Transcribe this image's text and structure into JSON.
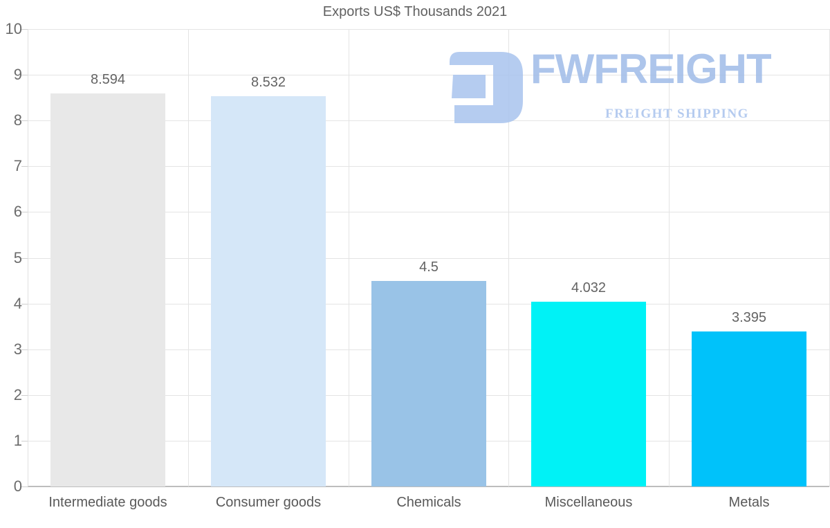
{
  "title": "Exports US$ Thousands 2021",
  "watermark": {
    "brand": "FWFREIGHT",
    "tagline": "FREIGHT SHIPPING",
    "logo_color": "#a9c4ee"
  },
  "chart_data": {
    "type": "bar",
    "title": "Exports US$ Thousands 2021",
    "categories": [
      "Intermediate goods",
      "Consumer goods",
      "Chemicals",
      "Miscellaneous",
      "Metals"
    ],
    "values": [
      8.594,
      8.532,
      4.5,
      4.032,
      3.395
    ],
    "value_labels": [
      "8.594",
      "8.532",
      "4.5",
      "4.032",
      "3.395"
    ],
    "bar_colors": [
      "#e8e8e8",
      "#d5e7f8",
      "#99c3e7",
      "#00f2f6",
      "#00c2fa"
    ],
    "xlabel": "",
    "ylabel": "",
    "ylim": [
      0,
      10
    ],
    "yticks": [
      0,
      1,
      2,
      3,
      4,
      5,
      6,
      7,
      8,
      9,
      10
    ],
    "grid": true,
    "legend": false,
    "colors": {
      "gridline": "#e4e4e4",
      "axis_line": "#bdbdbd",
      "tick_label": "#6b6b6b",
      "value_label": "#636363",
      "category_label": "#595959",
      "title_text": "#616161",
      "background": "#ffffff"
    }
  }
}
